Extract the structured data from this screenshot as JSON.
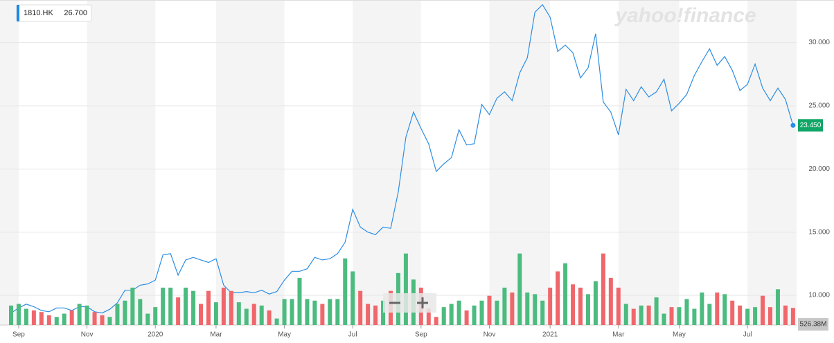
{
  "chart_data": {
    "type": "line",
    "logo": "yahoo!finance",
    "header_price": {
      "value": 26.7,
      "label": "26.700"
    },
    "categories": [
      null,
      "Sep",
      null,
      null,
      null,
      null,
      null,
      null,
      null,
      null,
      "Nov",
      null,
      null,
      null,
      null,
      null,
      null,
      null,
      null,
      "2020",
      null,
      null,
      null,
      null,
      null,
      null,
      null,
      "Mar",
      null,
      null,
      null,
      null,
      null,
      null,
      null,
      null,
      "May",
      null,
      null,
      null,
      null,
      null,
      null,
      null,
      null,
      "Jul",
      null,
      null,
      null,
      null,
      null,
      null,
      null,
      null,
      "Sep",
      null,
      null,
      null,
      null,
      null,
      null,
      null,
      null,
      "Nov",
      null,
      null,
      null,
      null,
      null,
      null,
      null,
      "2021",
      null,
      null,
      null,
      null,
      null,
      null,
      null,
      null,
      "Mar",
      null,
      null,
      null,
      null,
      null,
      null,
      null,
      "May",
      null,
      null,
      null,
      null,
      null,
      null,
      null,
      null,
      "Jul",
      null,
      null,
      null,
      null,
      null,
      null
    ],
    "series": [
      {
        "name": "1810.HK",
        "color": "#2b8de3",
        "values": [
          8.6,
          9.0,
          9.3,
          9.1,
          8.8,
          8.7,
          9.0,
          9.0,
          8.8,
          9.1,
          9.1,
          8.7,
          8.6,
          8.9,
          9.4,
          10.4,
          10.4,
          10.8,
          10.9,
          11.2,
          13.2,
          13.3,
          11.6,
          12.8,
          13.0,
          12.8,
          12.6,
          12.9,
          10.8,
          10.2,
          10.2,
          10.3,
          10.2,
          10.4,
          10.1,
          10.3,
          11.2,
          11.9,
          11.9,
          12.1,
          13.0,
          12.8,
          12.9,
          13.3,
          14.2,
          16.8,
          15.4,
          15.0,
          14.8,
          15.4,
          15.3,
          18.2,
          22.5,
          24.5,
          23.2,
          22.0,
          19.8,
          20.4,
          20.9,
          23.1,
          21.9,
          22.0,
          25.1,
          24.3,
          25.6,
          26.1,
          25.4,
          27.6,
          28.8,
          32.4,
          33.0,
          32.0,
          29.3,
          29.8,
          29.2,
          27.2,
          28.0,
          30.7,
          25.3,
          24.5,
          22.7,
          26.3,
          25.4,
          26.5,
          25.7,
          26.1,
          27.1,
          24.6,
          25.2,
          25.9,
          27.4,
          28.5,
          29.5,
          28.2,
          28.9,
          27.8,
          26.2,
          26.7,
          28.3,
          26.4,
          25.4,
          26.4,
          25.5,
          23.45
        ],
        "value_labels": [
          null,
          null,
          null,
          null,
          null,
          null,
          null,
          null,
          null,
          null,
          null,
          null,
          null,
          null,
          null,
          null,
          null,
          null,
          null,
          null,
          null,
          null,
          null,
          null,
          null,
          null,
          null,
          null,
          null,
          null,
          null,
          null,
          null,
          null,
          null,
          null,
          null,
          null,
          null,
          null,
          null,
          null,
          null,
          null,
          null,
          null,
          null,
          null,
          null,
          null,
          null,
          null,
          null,
          null,
          null,
          null,
          null,
          null,
          null,
          null,
          null,
          null,
          null,
          null,
          null,
          null,
          null,
          null,
          null,
          null,
          null,
          null,
          null,
          null,
          null,
          null,
          null,
          null,
          null,
          null,
          null,
          null,
          null,
          null,
          null,
          null,
          null,
          null,
          null,
          null,
          null,
          null,
          null,
          null,
          null,
          null,
          null,
          null,
          null,
          null,
          null,
          null,
          null,
          "23.450"
        ],
        "label_color": "#10a667"
      },
      {
        "type": "bar",
        "axis": "y2",
        "up_color": "#4cbb7f",
        "down_color": "#f0676b",
        "values": [
          600,
          650,
          500,
          450,
          400,
          300,
          250,
          350,
          450,
          650,
          600,
          400,
          300,
          250,
          650,
          750,
          1150,
          800,
          350,
          550,
          1150,
          1150,
          850,
          1150,
          1050,
          650,
          1050,
          700,
          1150,
          1050,
          700,
          500,
          650,
          600,
          450,
          200,
          800,
          800,
          1450,
          800,
          750,
          650,
          800,
          800,
          2050,
          1650,
          1050,
          650,
          600,
          750,
          1050,
          1600,
          2200,
          1400,
          1150,
          500,
          250,
          550,
          650,
          750,
          450,
          600,
          750,
          900,
          750,
          1150,
          1000,
          2200,
          1000,
          950,
          750,
          1150,
          1650,
          1900,
          1250,
          1150,
          950,
          1350,
          2200,
          1450,
          1150,
          650,
          500,
          600,
          600,
          850,
          350,
          550,
          550,
          800,
          500,
          1000,
          650,
          1000,
          950,
          750,
          600,
          500,
          550,
          900,
          550,
          1100,
          600,
          526.38
        ],
        "value_labels": [
          null,
          null,
          null,
          null,
          null,
          null,
          null,
          null,
          null,
          null,
          null,
          null,
          null,
          null,
          null,
          null,
          null,
          null,
          null,
          null,
          null,
          null,
          null,
          null,
          null,
          null,
          null,
          null,
          null,
          null,
          null,
          null,
          null,
          null,
          null,
          null,
          null,
          null,
          null,
          null,
          null,
          null,
          null,
          null,
          null,
          null,
          null,
          null,
          null,
          null,
          null,
          null,
          null,
          null,
          null,
          null,
          null,
          null,
          null,
          null,
          null,
          null,
          null,
          null,
          null,
          null,
          null,
          null,
          null,
          null,
          null,
          null,
          null,
          null,
          null,
          null,
          null,
          null,
          null,
          null,
          null,
          null,
          null,
          null,
          null,
          null,
          null,
          null,
          null,
          null,
          null,
          null,
          null,
          null,
          null,
          null,
          null,
          null,
          null,
          null,
          null,
          null,
          null,
          "526.38M"
        ]
      }
    ],
    "ylim": [
      7.65,
      33.37
    ],
    "yticks": [
      {
        "value": 10,
        "label": "10.000"
      },
      {
        "value": 15,
        "label": "15.000"
      },
      {
        "value": 20,
        "label": "20.000"
      },
      {
        "value": 25,
        "label": "25.000"
      },
      {
        "value": 30,
        "label": "30.000"
      }
    ],
    "y2lim": [
      0,
      10000
    ],
    "grid": true
  }
}
